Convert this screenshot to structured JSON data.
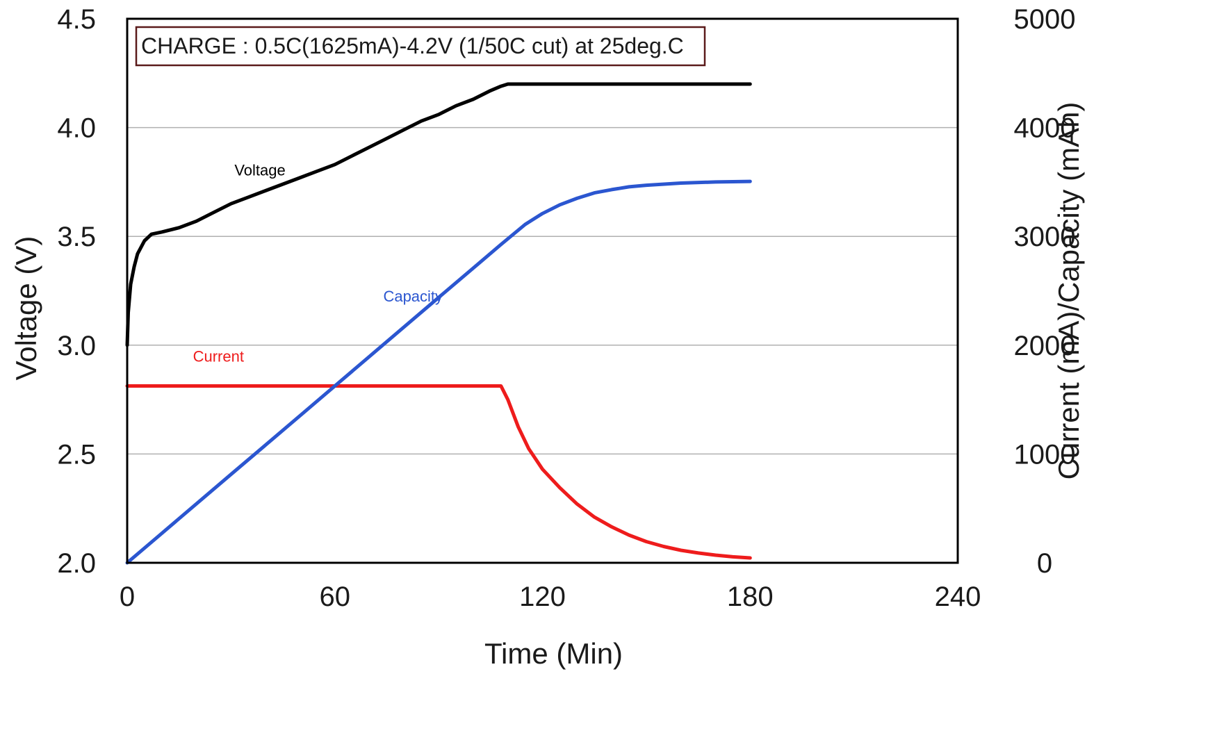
{
  "chart_data": {
    "type": "line",
    "annotation": "CHARGE : 0.5C(1625mA)-4.2V (1/50C cut) at 25deg.C",
    "xlabel": "Time (Min)",
    "ylabel": "Voltage (V)",
    "y2label": "Current (mA)/Capacity (mAh)",
    "xlim": [
      0,
      240
    ],
    "ylim": [
      2.0,
      4.5
    ],
    "y2lim": [
      0,
      5000
    ],
    "x_ticks": [
      0,
      60,
      120,
      180,
      240
    ],
    "y_ticks": [
      2.0,
      2.5,
      3.0,
      3.5,
      4.0,
      4.5
    ],
    "y_tick_labels": [
      "2.0",
      "2.5",
      "3.0",
      "3.5",
      "4.0",
      "4.5"
    ],
    "y2_ticks": [
      0,
      1000,
      2000,
      3000,
      4000,
      5000
    ],
    "grid": "horizontal",
    "series": [
      {
        "name": "Voltage",
        "axis": "left",
        "color": "#000000",
        "x": [
          0,
          0.3,
          1,
          2,
          3,
          5,
          7,
          10,
          15,
          20,
          25,
          30,
          35,
          40,
          45,
          50,
          55,
          60,
          65,
          70,
          75,
          80,
          85,
          90,
          95,
          100,
          105,
          108,
          110,
          120,
          140,
          160,
          180
        ],
        "y": [
          3.0,
          3.15,
          3.28,
          3.36,
          3.42,
          3.48,
          3.51,
          3.52,
          3.54,
          3.57,
          3.61,
          3.65,
          3.68,
          3.71,
          3.74,
          3.77,
          3.8,
          3.83,
          3.87,
          3.91,
          3.95,
          3.99,
          4.03,
          4.06,
          4.1,
          4.13,
          4.17,
          4.19,
          4.2,
          4.2,
          4.2,
          4.2,
          4.2
        ],
        "label": {
          "text": "Voltage",
          "x": 31,
          "y": 3.78,
          "color": "#000000"
        }
      },
      {
        "name": "Current",
        "axis": "right",
        "color": "#ee1c1c",
        "x": [
          0,
          108,
          110,
          113,
          116,
          120,
          125,
          130,
          135,
          140,
          145,
          150,
          155,
          160,
          165,
          170,
          175,
          180
        ],
        "y": [
          1625,
          1625,
          1500,
          1250,
          1050,
          860,
          690,
          540,
          420,
          330,
          255,
          195,
          150,
          115,
          90,
          70,
          55,
          45
        ],
        "label": {
          "text": "Current",
          "x": 19,
          "y": 1850,
          "color": "#ee1c1c"
        }
      },
      {
        "name": "Capacity",
        "axis": "right",
        "color": "#2b56d0",
        "x": [
          0,
          10,
          20,
          30,
          40,
          50,
          60,
          70,
          80,
          90,
          100,
          108,
          115,
          120,
          125,
          130,
          135,
          140,
          145,
          150,
          160,
          170,
          180
        ],
        "y": [
          0,
          271,
          542,
          813,
          1083,
          1354,
          1625,
          1896,
          2167,
          2438,
          2708,
          2925,
          3110,
          3210,
          3290,
          3350,
          3400,
          3430,
          3455,
          3470,
          3490,
          3500,
          3505
        ],
        "label": {
          "text": "Capacity",
          "x": 74,
          "y": 2400,
          "color": "#2b56d0"
        }
      }
    ]
  }
}
